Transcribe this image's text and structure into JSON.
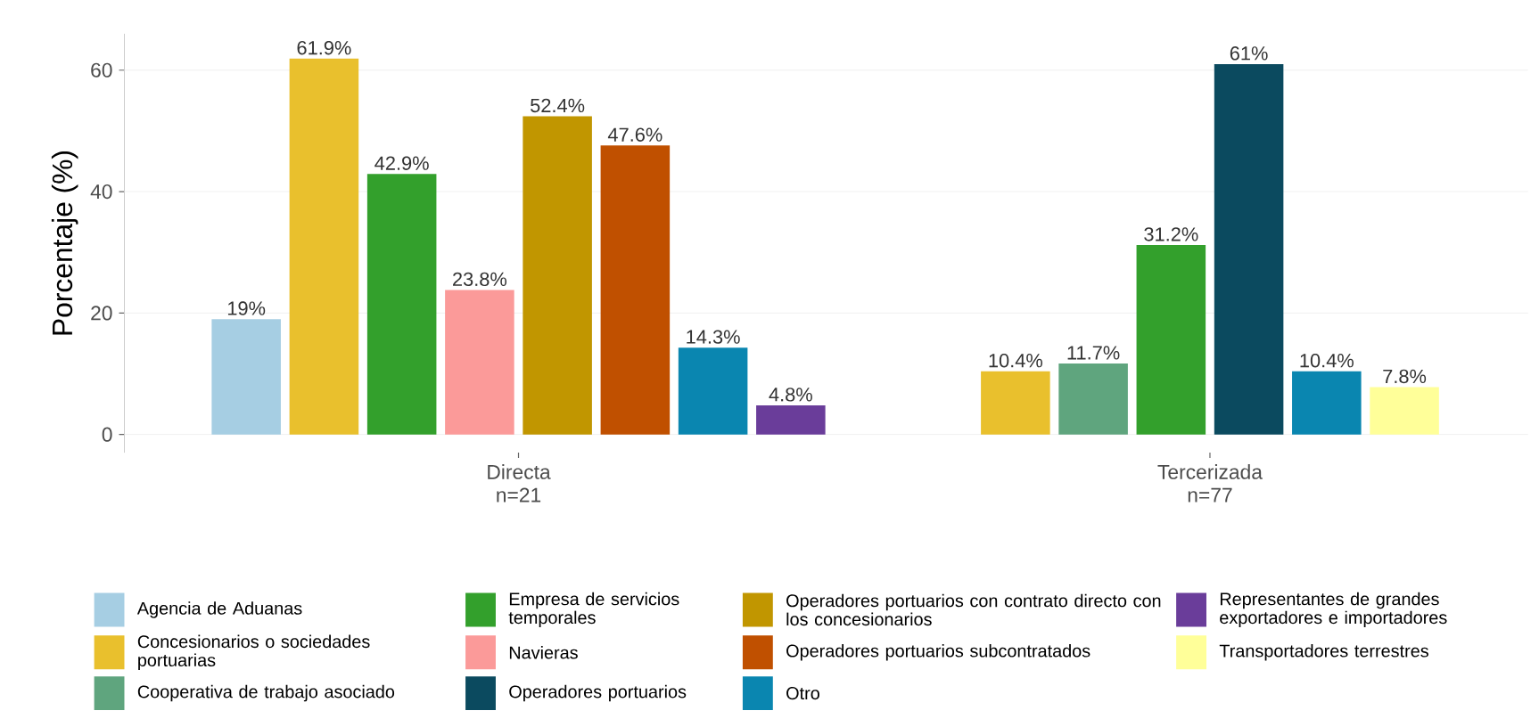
{
  "chart_data": {
    "type": "bar",
    "ylabel": "Porcentaje (%)",
    "categories": [
      "Directa n=21",
      "Tercerizada n=77"
    ],
    "series": [
      {
        "name": "Agencia de Aduanas",
        "color": "#a6cee3",
        "values": [
          19,
          null
        ],
        "value_labels": [
          "19%",
          null
        ]
      },
      {
        "name": "Concesionarios o sociedades portuarias",
        "color": "#e9c02d",
        "values": [
          61.9,
          10.4
        ],
        "value_labels": [
          "61.9%",
          "10.4%"
        ]
      },
      {
        "name": "Cooperativa de trabajo asociado",
        "color": "#5fa57e",
        "values": [
          null,
          11.7
        ],
        "value_labels": [
          null,
          "11.7%"
        ]
      },
      {
        "name": "Empresa de servicios temporales",
        "color": "#33a02c",
        "values": [
          42.9,
          31.2
        ],
        "value_labels": [
          "42.9%",
          "31.2%"
        ]
      },
      {
        "name": "Navieras",
        "color": "#fb9a99",
        "values": [
          23.8,
          null
        ],
        "value_labels": [
          "23.8%",
          null
        ]
      },
      {
        "name": "Operadores portuarios",
        "color": "#0b4a5f",
        "values": [
          null,
          61
        ],
        "value_labels": [
          null,
          "61%"
        ]
      },
      {
        "name": "Operadores portuarios con contrato directo con los concesionarios",
        "color": "#c19600",
        "values": [
          52.4,
          null
        ],
        "value_labels": [
          "52.4%",
          null
        ]
      },
      {
        "name": "Operadores portuarios subcontratados",
        "color": "#c05000",
        "values": [
          47.6,
          null
        ],
        "value_labels": [
          "47.6%",
          null
        ]
      },
      {
        "name": "Otro",
        "color": "#0a86b0",
        "values": [
          14.3,
          10.4
        ],
        "value_labels": [
          "14.3%",
          "10.4%"
        ]
      },
      {
        "name": "Representantes de grandes exportadores e importadores",
        "color": "#6a3d9a",
        "values": [
          4.8,
          null
        ],
        "value_labels": [
          "4.8%",
          null
        ]
      },
      {
        "name": "Transportadores terrestres",
        "color": "#ffff99",
        "values": [
          null,
          7.8
        ],
        "value_labels": [
          null,
          "7.8%"
        ]
      }
    ],
    "ylim": [
      -3,
      66
    ],
    "yticks": [
      0,
      20,
      40,
      60
    ],
    "grid": "y",
    "legend": "bottom"
  }
}
